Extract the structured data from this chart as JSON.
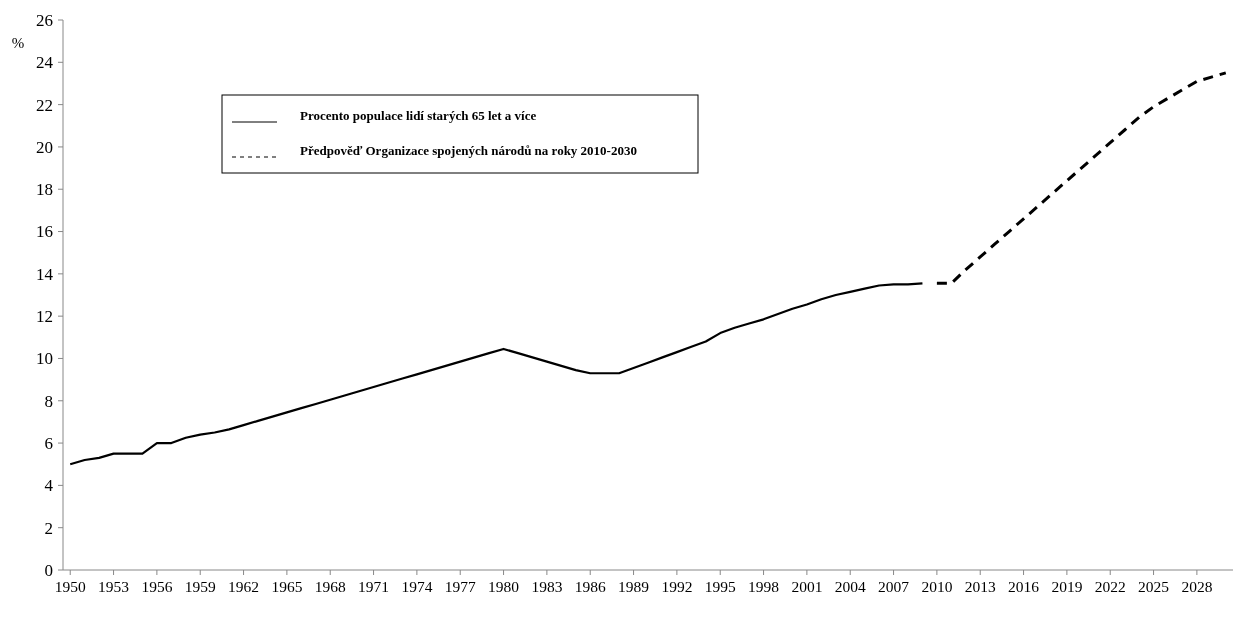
{
  "chart_data": {
    "type": "line",
    "ylabel": "%",
    "xlim": [
      1949.5,
      2030.5
    ],
    "xticks": [
      1950,
      1953,
      1956,
      1959,
      1962,
      1965,
      1968,
      1971,
      1974,
      1977,
      1980,
      1983,
      1986,
      1989,
      1992,
      1995,
      1998,
      2001,
      2004,
      2007,
      2010,
      2013,
      2016,
      2019,
      2022,
      2025,
      2028
    ],
    "ylim": [
      0,
      26
    ],
    "yticks": [
      0,
      2,
      4,
      6,
      8,
      10,
      12,
      14,
      16,
      18,
      20,
      22,
      24,
      26
    ],
    "legend": "top left",
    "grid": false,
    "marker": "none",
    "series": [
      {
        "name": "Procento populace lidí starých 65 let a více",
        "color": "#000000",
        "line_style": "solid",
        "x": [
          1950,
          1951,
          1952,
          1953,
          1954,
          1955,
          1956,
          1957,
          1958,
          1959,
          1960,
          1961,
          1962,
          1963,
          1964,
          1965,
          1966,
          1967,
          1968,
          1969,
          1970,
          1971,
          1972,
          1973,
          1974,
          1975,
          1976,
          1977,
          1978,
          1979,
          1980,
          1981,
          1982,
          1983,
          1984,
          1985,
          1986,
          1987,
          1988,
          1989,
          1990,
          1991,
          1992,
          1993,
          1994,
          1995,
          1996,
          1997,
          1998,
          1999,
          2000,
          2001,
          2002,
          2003,
          2004,
          2005,
          2006,
          2007,
          2008,
          2009
        ],
        "values": [
          5.0,
          5.2,
          5.3,
          5.5,
          5.5,
          5.5,
          6.0,
          6.0,
          6.25,
          6.4,
          6.5,
          6.65,
          6.85,
          7.05,
          7.25,
          7.45,
          7.65,
          7.85,
          8.05,
          8.25,
          8.45,
          8.65,
          8.85,
          9.05,
          9.25,
          9.45,
          9.65,
          9.85,
          10.05,
          10.25,
          10.45,
          10.25,
          10.05,
          9.85,
          9.65,
          9.45,
          9.3,
          9.3,
          9.3,
          9.55,
          9.8,
          10.05,
          10.3,
          10.55,
          10.8,
          11.2,
          11.45,
          11.65,
          11.85,
          12.1,
          12.35,
          12.55,
          12.8,
          13.0,
          13.15,
          13.3,
          13.45,
          13.5,
          13.5,
          13.55
        ]
      },
      {
        "name": "Předpověď Organizace spojených národů na roky 2010-2030",
        "color": "#000000",
        "line_style": "dashed",
        "x": [
          2010,
          2011,
          2012,
          2013,
          2014,
          2015,
          2016,
          2017,
          2018,
          2019,
          2020,
          2021,
          2022,
          2023,
          2024,
          2025,
          2026,
          2027,
          2028,
          2029,
          2030
        ],
        "values": [
          13.55,
          13.55,
          14.2,
          14.8,
          15.4,
          16.0,
          16.6,
          17.2,
          17.8,
          18.4,
          19.0,
          19.6,
          20.2,
          20.8,
          21.4,
          21.9,
          22.3,
          22.7,
          23.1,
          23.3,
          23.5
        ]
      }
    ]
  }
}
